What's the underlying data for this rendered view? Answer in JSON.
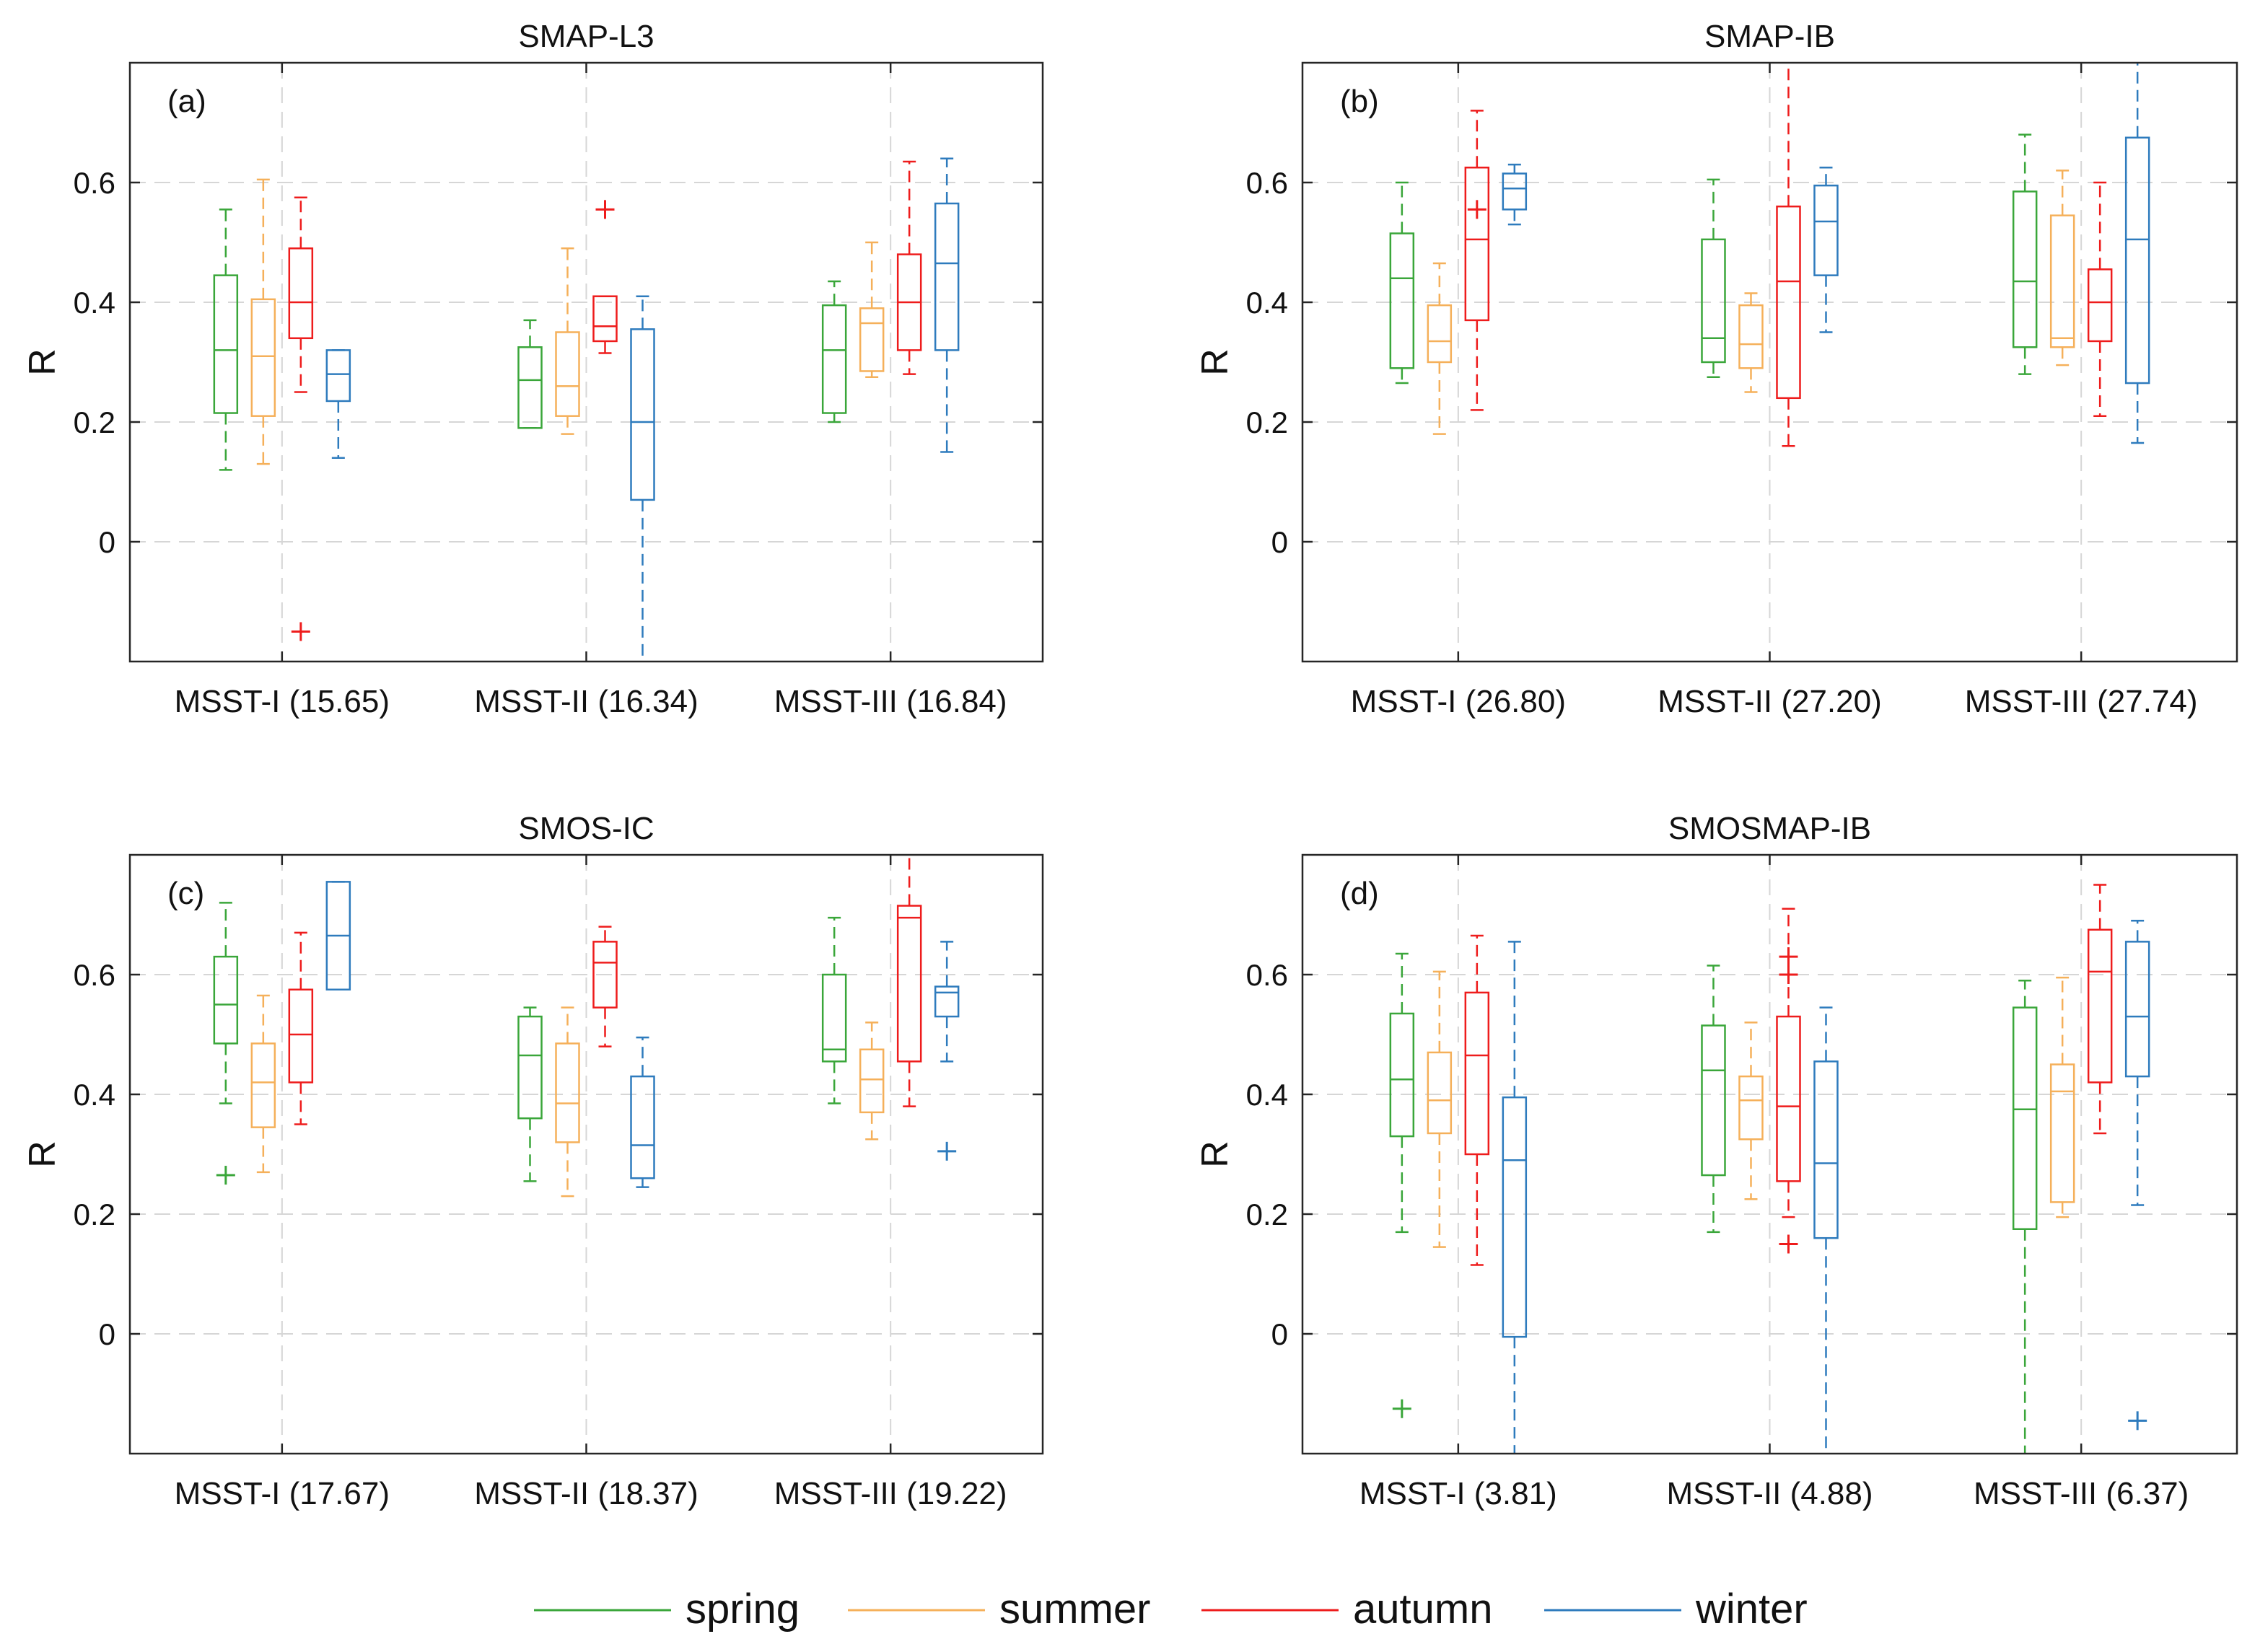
{
  "ylabel": "R",
  "series": [
    {
      "name": "spring",
      "color": "#3aa63a"
    },
    {
      "name": "summer",
      "color": "#f5b05a"
    },
    {
      "name": "autumn",
      "color": "#ee1c1c"
    },
    {
      "name": "winter",
      "color": "#2e7bbd"
    }
  ],
  "chart_data": [
    {
      "type": "boxplot",
      "panel": "(a)",
      "title": "SMAP-L3",
      "ylabel": "R",
      "ylim": [
        -0.2,
        0.8
      ],
      "yticks": [
        0,
        0.2,
        0.4,
        0.6
      ],
      "categories": [
        "MSST-I (15.65)",
        "MSST-II (16.34)",
        "MSST-III (16.84)"
      ],
      "groups": [
        [
          {
            "min": 0.12,
            "q1": 0.215,
            "median": 0.32,
            "q3": 0.445,
            "max": 0.555,
            "outliers": []
          },
          {
            "min": 0.13,
            "q1": 0.21,
            "median": 0.31,
            "q3": 0.405,
            "max": 0.605,
            "outliers": []
          },
          {
            "min": 0.25,
            "q1": 0.34,
            "median": 0.4,
            "q3": 0.49,
            "max": 0.575,
            "outliers": [
              -0.15
            ]
          },
          {
            "min": 0.14,
            "q1": 0.235,
            "median": 0.28,
            "q3": 0.32,
            "max": 0.32,
            "outliers": []
          }
        ],
        [
          {
            "min": 0.19,
            "q1": 0.19,
            "median": 0.27,
            "q3": 0.325,
            "max": 0.37,
            "outliers": []
          },
          {
            "min": 0.18,
            "q1": 0.21,
            "median": 0.26,
            "q3": 0.35,
            "max": 0.49,
            "outliers": []
          },
          {
            "min": 0.315,
            "q1": 0.335,
            "median": 0.36,
            "q3": 0.41,
            "max": 0.41,
            "outliers": [
              0.555
            ]
          },
          {
            "min": -0.2,
            "q1": 0.07,
            "median": 0.2,
            "q3": 0.355,
            "max": 0.41,
            "outliers": []
          }
        ],
        [
          {
            "min": 0.2,
            "q1": 0.215,
            "median": 0.32,
            "q3": 0.395,
            "max": 0.435,
            "outliers": []
          },
          {
            "min": 0.275,
            "q1": 0.285,
            "median": 0.365,
            "q3": 0.39,
            "max": 0.5,
            "outliers": []
          },
          {
            "min": 0.28,
            "q1": 0.32,
            "median": 0.4,
            "q3": 0.48,
            "max": 0.635,
            "outliers": []
          },
          {
            "min": 0.15,
            "q1": 0.32,
            "median": 0.465,
            "q3": 0.565,
            "max": 0.64,
            "outliers": []
          }
        ]
      ]
    },
    {
      "type": "boxplot",
      "panel": "(b)",
      "title": "SMAP-IB",
      "ylabel": "R",
      "ylim": [
        -0.2,
        0.8
      ],
      "yticks": [
        0,
        0.2,
        0.4,
        0.6
      ],
      "categories": [
        "MSST-I (26.80)",
        "MSST-II (27.20)",
        "MSST-III (27.74)"
      ],
      "groups": [
        [
          {
            "min": 0.265,
            "q1": 0.29,
            "median": 0.44,
            "q3": 0.515,
            "max": 0.6,
            "outliers": []
          },
          {
            "min": 0.18,
            "q1": 0.3,
            "median": 0.335,
            "q3": 0.395,
            "max": 0.465,
            "outliers": []
          },
          {
            "min": 0.22,
            "q1": 0.37,
            "median": 0.505,
            "q3": 0.625,
            "max": 0.72,
            "outliers": [
              0.555
            ]
          },
          {
            "min": 0.53,
            "q1": 0.555,
            "median": 0.59,
            "q3": 0.615,
            "max": 0.63,
            "outliers": []
          }
        ],
        [
          {
            "min": 0.275,
            "q1": 0.3,
            "median": 0.34,
            "q3": 0.505,
            "max": 0.605,
            "outliers": []
          },
          {
            "min": 0.25,
            "q1": 0.29,
            "median": 0.33,
            "q3": 0.395,
            "max": 0.415,
            "outliers": []
          },
          {
            "min": 0.16,
            "q1": 0.24,
            "median": 0.435,
            "q3": 0.56,
            "max": 0.8,
            "outliers": []
          },
          {
            "min": 0.35,
            "q1": 0.445,
            "median": 0.535,
            "q3": 0.595,
            "max": 0.625,
            "outliers": []
          }
        ],
        [
          {
            "min": 0.28,
            "q1": 0.325,
            "median": 0.435,
            "q3": 0.585,
            "max": 0.68,
            "outliers": []
          },
          {
            "min": 0.295,
            "q1": 0.325,
            "median": 0.34,
            "q3": 0.545,
            "max": 0.62,
            "outliers": []
          },
          {
            "min": 0.21,
            "q1": 0.335,
            "median": 0.4,
            "q3": 0.455,
            "max": 0.6,
            "outliers": []
          },
          {
            "min": 0.165,
            "q1": 0.265,
            "median": 0.505,
            "q3": 0.675,
            "max": 0.8,
            "outliers": []
          }
        ]
      ]
    },
    {
      "type": "boxplot",
      "panel": "(c)",
      "title": "SMOS-IC",
      "ylabel": "R",
      "ylim": [
        -0.2,
        0.8
      ],
      "yticks": [
        0,
        0.2,
        0.4,
        0.6
      ],
      "categories": [
        "MSST-I (17.67)",
        "MSST-II (18.37)",
        "MSST-III (19.22)"
      ],
      "groups": [
        [
          {
            "min": 0.385,
            "q1": 0.485,
            "median": 0.55,
            "q3": 0.63,
            "max": 0.72,
            "outliers": [
              0.265
            ]
          },
          {
            "min": 0.27,
            "q1": 0.345,
            "median": 0.42,
            "q3": 0.485,
            "max": 0.565,
            "outliers": []
          },
          {
            "min": 0.35,
            "q1": 0.42,
            "median": 0.5,
            "q3": 0.575,
            "max": 0.67,
            "outliers": []
          },
          {
            "min": 0.575,
            "q1": 0.575,
            "median": 0.665,
            "q3": 0.755,
            "max": 0.755,
            "outliers": []
          }
        ],
        [
          {
            "min": 0.255,
            "q1": 0.36,
            "median": 0.465,
            "q3": 0.53,
            "max": 0.545,
            "outliers": []
          },
          {
            "min": 0.23,
            "q1": 0.32,
            "median": 0.385,
            "q3": 0.485,
            "max": 0.545,
            "outliers": []
          },
          {
            "min": 0.48,
            "q1": 0.545,
            "median": 0.62,
            "q3": 0.655,
            "max": 0.68,
            "outliers": []
          },
          {
            "min": 0.245,
            "q1": 0.26,
            "median": 0.315,
            "q3": 0.43,
            "max": 0.495,
            "outliers": []
          }
        ],
        [
          {
            "min": 0.385,
            "q1": 0.455,
            "median": 0.475,
            "q3": 0.6,
            "max": 0.695,
            "outliers": []
          },
          {
            "min": 0.325,
            "q1": 0.37,
            "median": 0.425,
            "q3": 0.475,
            "max": 0.52,
            "outliers": []
          },
          {
            "min": 0.38,
            "q1": 0.455,
            "median": 0.695,
            "q3": 0.715,
            "max": 0.8,
            "outliers": []
          },
          {
            "min": 0.455,
            "q1": 0.53,
            "median": 0.57,
            "q3": 0.58,
            "max": 0.655,
            "outliers": [
              0.305
            ]
          }
        ]
      ]
    },
    {
      "type": "boxplot",
      "panel": "(d)",
      "title": "SMOSMAP-IB",
      "ylabel": "R",
      "ylim": [
        -0.2,
        0.8
      ],
      "yticks": [
        0,
        0.2,
        0.4,
        0.6
      ],
      "categories": [
        "MSST-I (3.81)",
        "MSST-II (4.88)",
        "MSST-III (6.37)"
      ],
      "groups": [
        [
          {
            "min": 0.17,
            "q1": 0.33,
            "median": 0.425,
            "q3": 0.535,
            "max": 0.635,
            "outliers": [
              -0.125
            ]
          },
          {
            "min": 0.145,
            "q1": 0.335,
            "median": 0.39,
            "q3": 0.47,
            "max": 0.605,
            "outliers": []
          },
          {
            "min": 0.115,
            "q1": 0.3,
            "median": 0.465,
            "q3": 0.57,
            "max": 0.665,
            "outliers": []
          },
          {
            "min": -0.2,
            "q1": -0.005,
            "median": 0.29,
            "q3": 0.395,
            "max": 0.655,
            "outliers": []
          }
        ],
        [
          {
            "min": 0.17,
            "q1": 0.265,
            "median": 0.44,
            "q3": 0.515,
            "max": 0.615,
            "outliers": []
          },
          {
            "min": 0.225,
            "q1": 0.325,
            "median": 0.39,
            "q3": 0.43,
            "max": 0.52,
            "outliers": []
          },
          {
            "min": 0.195,
            "q1": 0.255,
            "median": 0.38,
            "q3": 0.53,
            "max": 0.71,
            "outliers": [
              0.63,
              0.6,
              0.15
            ]
          },
          {
            "min": -0.2,
            "q1": 0.16,
            "median": 0.285,
            "q3": 0.455,
            "max": 0.545,
            "outliers": []
          }
        ],
        [
          {
            "min": -0.2,
            "q1": 0.175,
            "median": 0.375,
            "q3": 0.545,
            "max": 0.59,
            "outliers": []
          },
          {
            "min": 0.195,
            "q1": 0.22,
            "median": 0.405,
            "q3": 0.45,
            "max": 0.595,
            "outliers": []
          },
          {
            "min": 0.335,
            "q1": 0.42,
            "median": 0.605,
            "q3": 0.675,
            "max": 0.75,
            "outliers": []
          },
          {
            "min": 0.215,
            "q1": 0.43,
            "median": 0.53,
            "q3": 0.655,
            "max": 0.69,
            "outliers": [
              -0.145
            ]
          }
        ]
      ]
    }
  ]
}
